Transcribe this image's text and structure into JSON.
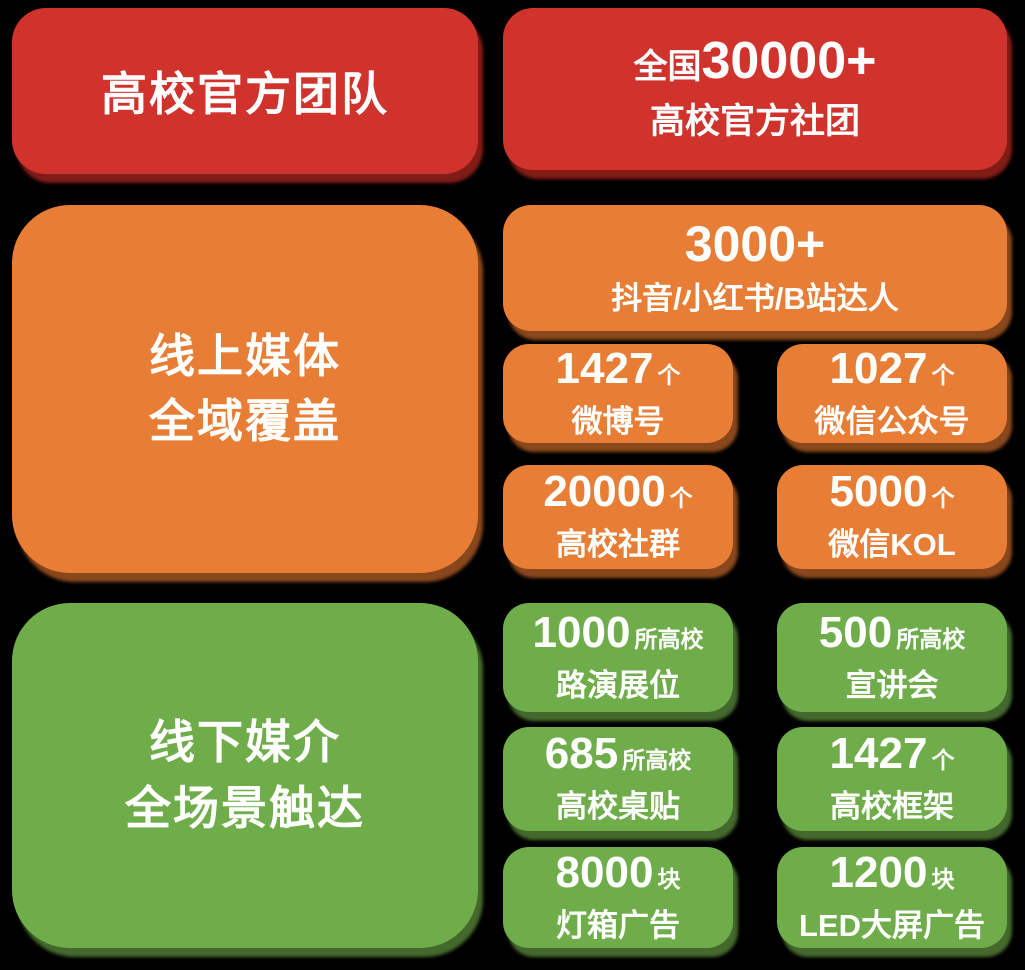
{
  "page": {
    "background_color": "#000000",
    "text_color": "#FFFFFF"
  },
  "sections": {
    "team": {
      "accent_color": "#D0322C",
      "shadow_color": "#821C16",
      "title": "高校官方团队",
      "stat": {
        "prefix": "全国",
        "number": "30000+",
        "label": "高校官方社团"
      }
    },
    "online": {
      "accent_color": "#E87E35",
      "shadow_color": "#8A471C",
      "title_line1": "线上媒体",
      "title_line2": "全域覆盖",
      "hero": {
        "number": "3000+",
        "label": "抖音/小红书/B站达人"
      },
      "stats": [
        {
          "number": "1427",
          "unit": "个",
          "label": "微博号"
        },
        {
          "number": "1027",
          "unit": "个",
          "label": "微信公众号"
        },
        {
          "number": "20000",
          "unit": "个",
          "label": "高校社群"
        },
        {
          "number": "5000",
          "unit": "个",
          "label": "微信KOL"
        }
      ]
    },
    "offline": {
      "accent_color": "#6FAD4B",
      "shadow_color": "#44692C",
      "title_line1": "线下媒介",
      "title_line2": "全场景触达",
      "stats": [
        {
          "number": "1000",
          "unit": "所高校",
          "label": "路演展位"
        },
        {
          "number": "500",
          "unit": "所高校",
          "label": "宣讲会"
        },
        {
          "number": "685",
          "unit": "所高校",
          "label": "高校桌贴"
        },
        {
          "number": "1427",
          "unit": "个",
          "label": "高校框架"
        },
        {
          "number": "8000",
          "unit": "块",
          "label": "灯箱广告"
        },
        {
          "number": "1200",
          "unit": "块",
          "label": "LED大屏广告"
        }
      ]
    }
  }
}
